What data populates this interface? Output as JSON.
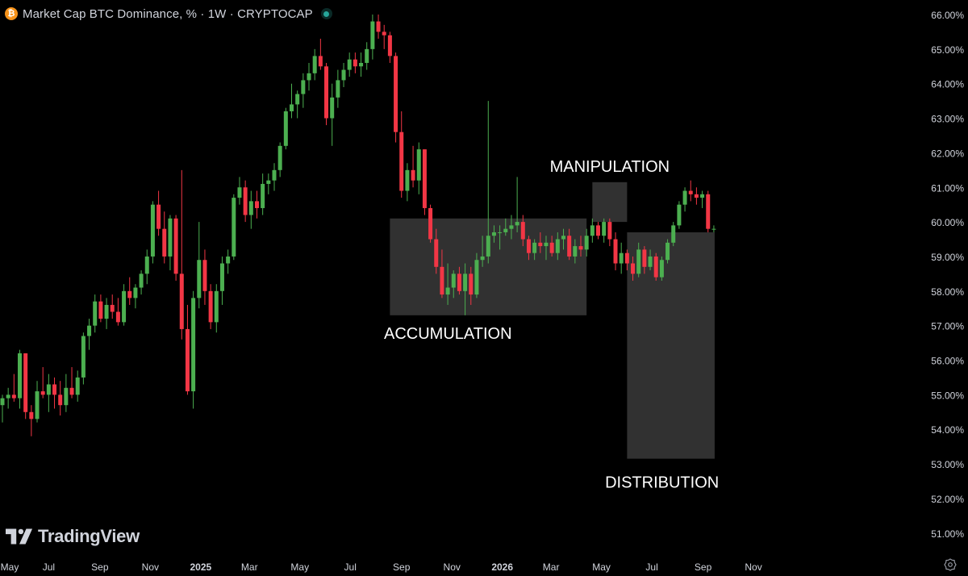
{
  "header": {
    "coin_symbol": "₿",
    "title": "Market Cap BTC Dominance, % · 1W · CRYPTOCAP"
  },
  "logo": {
    "text": "TradingView"
  },
  "icons": {
    "settings": "gear-icon",
    "coin": "bitcoin-icon",
    "status": "live-status-dot"
  },
  "colors": {
    "background": "#000000",
    "up": "#4caf50",
    "down": "#f23645",
    "zone_fill": "#3a3a3a",
    "axis_text": "#d1d4dc",
    "annotation_text": "#ffffff"
  },
  "chart_data": {
    "type": "candlestick",
    "interval": "1W",
    "x_axis": {
      "labels": [
        "May",
        "Jul",
        "Sep",
        "Nov",
        "2025",
        "Mar",
        "May",
        "Jul",
        "Sep",
        "Nov",
        "2026",
        "Mar",
        "May",
        "Jul",
        "Sep",
        "Nov"
      ],
      "bold_labels": [
        "2025",
        "2026"
      ],
      "range": [
        "2024-05",
        "2026-11"
      ]
    },
    "y_axis": {
      "ticks": [
        "66.00%",
        "65.00%",
        "64.00%",
        "63.00%",
        "62.00%",
        "61.00%",
        "60.00%",
        "59.00%",
        "58.00%",
        "57.00%",
        "56.00%",
        "55.00%",
        "54.00%",
        "53.00%",
        "52.00%",
        "51.00%"
      ],
      "range": [
        50.7,
        66.3
      ],
      "side": "right"
    },
    "ohlc": [
      [
        54.7,
        55.0,
        54.2,
        54.9
      ],
      [
        54.9,
        55.2,
        54.6,
        55.0
      ],
      [
        55.0,
        55.6,
        54.8,
        54.9
      ],
      [
        54.9,
        56.3,
        54.6,
        56.2
      ],
      [
        56.2,
        56.2,
        54.3,
        54.5
      ],
      [
        54.5,
        54.7,
        53.8,
        54.3
      ],
      [
        54.3,
        55.4,
        54.2,
        55.1
      ],
      [
        55.1,
        55.8,
        54.9,
        55.0
      ],
      [
        55.0,
        55.6,
        54.5,
        55.3
      ],
      [
        55.3,
        55.5,
        54.6,
        55.0
      ],
      [
        55.0,
        55.4,
        54.4,
        54.7
      ],
      [
        54.7,
        55.6,
        54.5,
        55.2
      ],
      [
        55.2,
        55.8,
        54.9,
        55.0
      ],
      [
        55.0,
        55.7,
        54.8,
        55.5
      ],
      [
        55.5,
        56.8,
        55.3,
        56.7
      ],
      [
        56.7,
        57.2,
        56.3,
        57.0
      ],
      [
        57.0,
        57.9,
        56.8,
        57.7
      ],
      [
        57.7,
        57.9,
        57.1,
        57.2
      ],
      [
        57.2,
        57.8,
        56.9,
        57.6
      ],
      [
        57.6,
        57.9,
        57.2,
        57.4
      ],
      [
        57.4,
        57.8,
        57.0,
        57.1
      ],
      [
        57.1,
        58.2,
        57.0,
        58.0
      ],
      [
        58.0,
        58.4,
        57.6,
        57.8
      ],
      [
        57.8,
        58.2,
        57.5,
        58.1
      ],
      [
        58.1,
        58.6,
        57.9,
        58.5
      ],
      [
        58.5,
        59.2,
        58.2,
        59.0
      ],
      [
        59.0,
        60.6,
        58.8,
        60.5
      ],
      [
        60.5,
        60.9,
        59.6,
        59.8
      ],
      [
        59.8,
        60.3,
        58.8,
        59.0
      ],
      [
        59.0,
        60.2,
        58.6,
        60.1
      ],
      [
        60.1,
        60.2,
        58.3,
        58.5
      ],
      [
        58.5,
        61.5,
        56.6,
        56.9
      ],
      [
        56.9,
        57.6,
        55.0,
        55.1
      ],
      [
        55.1,
        58.0,
        54.6,
        57.8
      ],
      [
        57.8,
        60.0,
        57.5,
        58.9
      ],
      [
        58.9,
        59.2,
        57.6,
        58.0
      ],
      [
        58.0,
        58.2,
        56.9,
        57.1
      ],
      [
        57.1,
        58.2,
        56.8,
        58.0
      ],
      [
        58.0,
        59.0,
        57.6,
        58.8
      ],
      [
        58.8,
        59.2,
        58.5,
        59.0
      ],
      [
        59.0,
        60.8,
        58.9,
        60.7
      ],
      [
        60.7,
        61.3,
        60.5,
        61.0
      ],
      [
        61.0,
        61.2,
        60.0,
        60.2
      ],
      [
        60.2,
        60.9,
        59.8,
        60.6
      ],
      [
        60.6,
        60.9,
        60.1,
        60.4
      ],
      [
        60.4,
        61.4,
        60.2,
        61.1
      ],
      [
        61.1,
        61.4,
        60.8,
        61.2
      ],
      [
        61.2,
        61.7,
        60.9,
        61.5
      ],
      [
        61.5,
        62.3,
        61.3,
        62.2
      ],
      [
        62.2,
        63.3,
        62.1,
        63.2
      ],
      [
        63.2,
        64.0,
        63.0,
        63.4
      ],
      [
        63.4,
        63.8,
        63.0,
        63.7
      ],
      [
        63.7,
        64.3,
        63.3,
        64.1
      ],
      [
        64.1,
        64.6,
        63.8,
        64.3
      ],
      [
        64.3,
        65.0,
        64.1,
        64.8
      ],
      [
        64.8,
        65.3,
        64.4,
        64.5
      ],
      [
        64.5,
        64.6,
        62.8,
        63.0
      ],
      [
        63.0,
        64.0,
        62.2,
        63.6
      ],
      [
        63.6,
        64.4,
        63.3,
        64.1
      ],
      [
        64.1,
        64.6,
        63.9,
        64.4
      ],
      [
        64.4,
        64.9,
        64.2,
        64.7
      ],
      [
        64.7,
        64.9,
        64.3,
        64.5
      ],
      [
        64.5,
        64.9,
        64.2,
        64.6
      ],
      [
        64.6,
        65.2,
        64.4,
        65.0
      ],
      [
        65.0,
        66.0,
        64.7,
        65.8
      ],
      [
        65.8,
        66.0,
        65.3,
        65.5
      ],
      [
        65.5,
        65.7,
        65.0,
        65.4
      ],
      [
        65.4,
        65.5,
        64.6,
        64.8
      ],
      [
        64.8,
        64.9,
        62.3,
        62.6
      ],
      [
        62.6,
        63.2,
        60.7,
        60.9
      ],
      [
        60.9,
        61.7,
        60.6,
        61.5
      ],
      [
        61.5,
        62.2,
        61.0,
        61.2
      ],
      [
        61.2,
        62.3,
        60.8,
        62.1
      ],
      [
        62.1,
        62.1,
        60.2,
        60.4
      ],
      [
        60.4,
        60.5,
        59.4,
        59.5
      ],
      [
        59.5,
        59.8,
        58.5,
        58.7
      ],
      [
        58.7,
        59.2,
        57.8,
        57.9
      ],
      [
        57.9,
        58.8,
        57.6,
        58.1
      ],
      [
        58.1,
        58.6,
        57.8,
        58.5
      ],
      [
        58.5,
        58.7,
        57.9,
        58.0
      ],
      [
        58.0,
        58.8,
        57.3,
        58.5
      ],
      [
        58.5,
        58.7,
        57.6,
        57.9
      ],
      [
        57.9,
        59.1,
        57.8,
        58.9
      ],
      [
        58.9,
        59.6,
        58.7,
        59.0
      ],
      [
        59.0,
        63.5,
        58.8,
        59.6
      ],
      [
        59.6,
        59.9,
        59.4,
        59.7
      ],
      [
        59.7,
        59.9,
        59.2,
        59.7
      ],
      [
        59.7,
        60.1,
        59.6,
        59.8
      ],
      [
        59.8,
        60.2,
        59.5,
        59.9
      ],
      [
        59.9,
        61.3,
        59.7,
        60.0
      ],
      [
        60.0,
        60.2,
        59.3,
        59.5
      ],
      [
        59.5,
        59.6,
        58.9,
        59.1
      ],
      [
        59.1,
        59.5,
        58.9,
        59.4
      ],
      [
        59.4,
        59.7,
        59.1,
        59.3
      ],
      [
        59.3,
        59.6,
        58.9,
        59.4
      ],
      [
        59.4,
        59.6,
        59.0,
        59.1
      ],
      [
        59.1,
        59.7,
        58.9,
        59.5
      ],
      [
        59.5,
        59.8,
        59.2,
        59.6
      ],
      [
        59.6,
        59.8,
        58.9,
        59.0
      ],
      [
        59.0,
        59.5,
        58.8,
        59.3
      ],
      [
        59.3,
        59.6,
        59.0,
        59.2
      ],
      [
        59.2,
        59.8,
        59.0,
        59.6
      ],
      [
        59.6,
        60.1,
        59.4,
        59.9
      ],
      [
        59.9,
        60.0,
        59.5,
        59.6
      ],
      [
        59.6,
        60.1,
        59.4,
        60.0
      ],
      [
        60.0,
        60.1,
        59.3,
        59.5
      ],
      [
        59.5,
        59.7,
        58.6,
        58.8
      ],
      [
        58.8,
        59.4,
        58.5,
        59.1
      ],
      [
        59.1,
        59.2,
        58.6,
        58.8
      ],
      [
        58.8,
        59.0,
        58.3,
        58.5
      ],
      [
        58.5,
        59.4,
        58.4,
        59.2
      ],
      [
        59.2,
        59.3,
        58.5,
        58.7
      ],
      [
        58.7,
        59.2,
        58.6,
        59.0
      ],
      [
        59.0,
        59.1,
        58.3,
        58.4
      ],
      [
        58.4,
        59.0,
        58.3,
        58.9
      ],
      [
        58.9,
        59.5,
        58.8,
        59.4
      ],
      [
        59.4,
        60.0,
        59.3,
        59.9
      ],
      [
        59.9,
        60.6,
        59.8,
        60.5
      ],
      [
        60.5,
        61.0,
        60.3,
        60.9
      ],
      [
        60.9,
        61.2,
        60.6,
        60.8
      ],
      [
        60.8,
        61.0,
        60.5,
        60.7
      ],
      [
        60.7,
        60.9,
        60.4,
        60.8
      ],
      [
        60.8,
        60.9,
        59.7,
        59.8
      ],
      [
        59.8,
        59.9,
        59.7,
        59.8
      ]
    ],
    "annotations": [
      {
        "label": "ACCUMULATION",
        "x_range": [
          "2025-08-18",
          "2026-04-13"
        ],
        "y_range": [
          57.3,
          60.1
        ]
      },
      {
        "label": "MANIPULATION",
        "x_range": [
          "2026-04-20",
          "2026-06-01"
        ],
        "y_range": [
          60.0,
          61.15
        ]
      },
      {
        "label": "DISTRIBUTION",
        "x_range": [
          "2026-06-01",
          "2026-09-15"
        ],
        "y_range": [
          53.15,
          59.7
        ]
      }
    ]
  }
}
